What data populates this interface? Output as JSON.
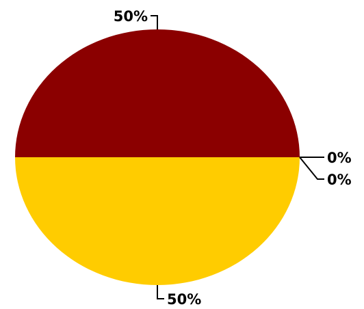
{
  "chart_data": {
    "type": "pie",
    "slices": [
      {
        "value": 50,
        "label": "50%",
        "color": "#8b0000"
      },
      {
        "value": 0,
        "label": "0%",
        "color": "#a0522d"
      },
      {
        "value": 0,
        "label": "0%",
        "color": "#d2691e"
      },
      {
        "value": 50,
        "label": "50%",
        "color": "#ffcc00"
      }
    ],
    "start_angle_deg": 180,
    "direction": "clockwise",
    "legend": "none"
  }
}
